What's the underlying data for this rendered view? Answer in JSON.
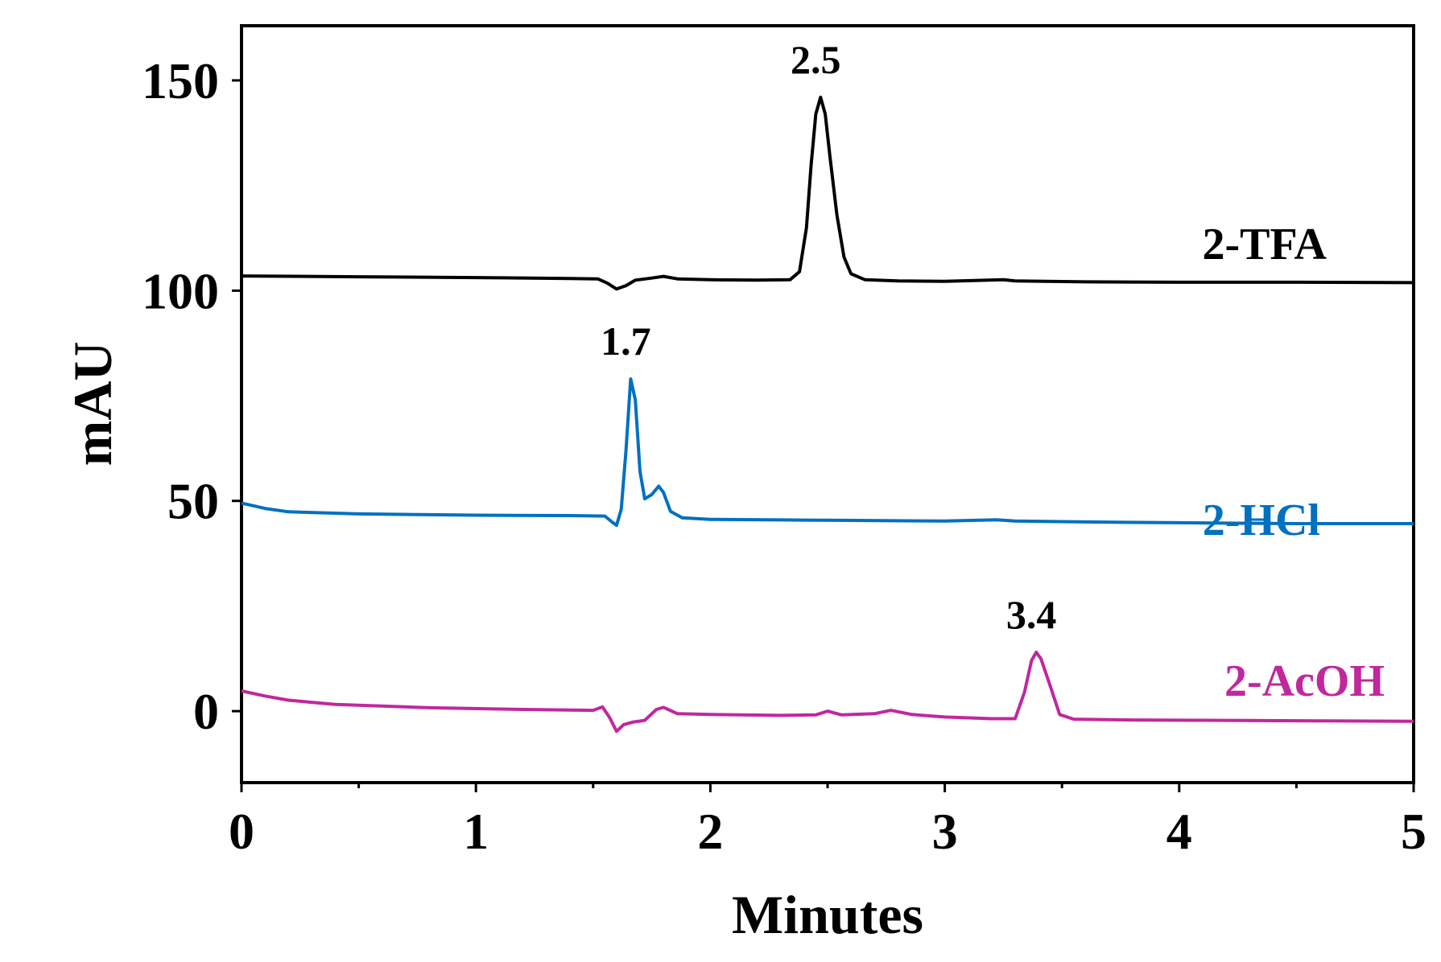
{
  "chart_data": {
    "type": "line",
    "xlabel": "Minutes",
    "ylabel": "mAU",
    "xlim": [
      0,
      5
    ],
    "ylim": [
      -17,
      163
    ],
    "xticks": [
      0,
      1,
      2,
      3,
      4,
      5
    ],
    "yticks": [
      0,
      50,
      100,
      150
    ],
    "grid": false,
    "series": [
      {
        "name": "2-TFA",
        "color": "#000000",
        "peak_label": "2.5",
        "peak": {
          "x": 2.47,
          "y": 146
        },
        "points": [
          [
            0,
            103.5
          ],
          [
            0.5,
            103.3
          ],
          [
            1.0,
            103.1
          ],
          [
            1.4,
            102.9
          ],
          [
            1.52,
            102.8
          ],
          [
            1.56,
            101.8
          ],
          [
            1.6,
            100.4
          ],
          [
            1.64,
            101.2
          ],
          [
            1.68,
            102.5
          ],
          [
            1.75,
            103.0
          ],
          [
            1.8,
            103.4
          ],
          [
            1.86,
            102.8
          ],
          [
            2.0,
            102.6
          ],
          [
            2.2,
            102.5
          ],
          [
            2.34,
            102.6
          ],
          [
            2.38,
            104.5
          ],
          [
            2.41,
            115
          ],
          [
            2.43,
            130
          ],
          [
            2.45,
            142
          ],
          [
            2.47,
            146
          ],
          [
            2.49,
            142
          ],
          [
            2.51,
            132
          ],
          [
            2.54,
            118
          ],
          [
            2.57,
            108
          ],
          [
            2.6,
            104
          ],
          [
            2.66,
            102.6
          ],
          [
            2.8,
            102.3
          ],
          [
            3.0,
            102.2
          ],
          [
            3.25,
            102.6
          ],
          [
            3.3,
            102.3
          ],
          [
            3.6,
            102.1
          ],
          [
            4.0,
            102.0
          ],
          [
            4.5,
            102.0
          ],
          [
            5.0,
            101.9
          ]
        ]
      },
      {
        "name": "2-HCl",
        "color": "#0070c0",
        "peak_label": "1.7",
        "peak": {
          "x": 1.66,
          "y": 79
        },
        "points": [
          [
            0,
            49.5
          ],
          [
            0.1,
            48.2
          ],
          [
            0.2,
            47.4
          ],
          [
            0.5,
            46.9
          ],
          [
            1.0,
            46.6
          ],
          [
            1.4,
            46.5
          ],
          [
            1.55,
            46.4
          ],
          [
            1.58,
            45.0
          ],
          [
            1.6,
            44.2
          ],
          [
            1.62,
            48
          ],
          [
            1.64,
            62
          ],
          [
            1.66,
            79
          ],
          [
            1.68,
            74
          ],
          [
            1.7,
            57
          ],
          [
            1.72,
            50.5
          ],
          [
            1.75,
            51.5
          ],
          [
            1.78,
            53.5
          ],
          [
            1.8,
            52
          ],
          [
            1.83,
            47.5
          ],
          [
            1.88,
            46
          ],
          [
            2.0,
            45.6
          ],
          [
            2.5,
            45.4
          ],
          [
            3.0,
            45.2
          ],
          [
            3.22,
            45.5
          ],
          [
            3.3,
            45.2
          ],
          [
            3.6,
            45.0
          ],
          [
            4.0,
            44.8
          ],
          [
            4.5,
            44.6
          ],
          [
            5.0,
            44.6
          ]
        ]
      },
      {
        "name": "2-AcOH",
        "color": "#c0289e",
        "peak_label": "3.4",
        "peak": {
          "x": 3.39,
          "y": 14
        },
        "points": [
          [
            0,
            4.8
          ],
          [
            0.1,
            3.6
          ],
          [
            0.2,
            2.6
          ],
          [
            0.4,
            1.6
          ],
          [
            0.8,
            0.8
          ],
          [
            1.2,
            0.4
          ],
          [
            1.5,
            0.2
          ],
          [
            1.54,
            1.0
          ],
          [
            1.57,
            -1.5
          ],
          [
            1.6,
            -4.8
          ],
          [
            1.63,
            -3.2
          ],
          [
            1.67,
            -2.6
          ],
          [
            1.72,
            -2.2
          ],
          [
            1.77,
            0.4
          ],
          [
            1.8,
            0.9
          ],
          [
            1.86,
            -0.6
          ],
          [
            2.0,
            -0.8
          ],
          [
            2.3,
            -1.0
          ],
          [
            2.45,
            -0.9
          ],
          [
            2.5,
            0.0
          ],
          [
            2.56,
            -0.9
          ],
          [
            2.7,
            -0.6
          ],
          [
            2.77,
            0.2
          ],
          [
            2.86,
            -0.8
          ],
          [
            3.0,
            -1.4
          ],
          [
            3.2,
            -1.8
          ],
          [
            3.3,
            -1.8
          ],
          [
            3.34,
            4.5
          ],
          [
            3.37,
            12
          ],
          [
            3.39,
            14
          ],
          [
            3.41,
            12.5
          ],
          [
            3.45,
            6
          ],
          [
            3.49,
            -0.8
          ],
          [
            3.55,
            -1.9
          ],
          [
            3.8,
            -2.1
          ],
          [
            4.2,
            -2.2
          ],
          [
            4.6,
            -2.3
          ],
          [
            5.0,
            -2.4
          ]
        ]
      }
    ]
  }
}
